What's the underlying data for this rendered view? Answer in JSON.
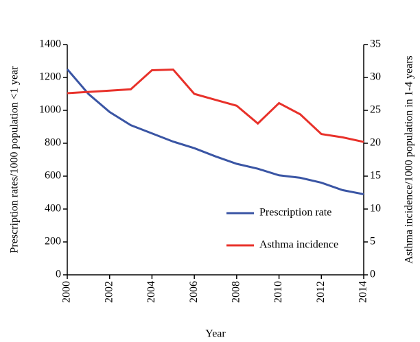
{
  "chart_data": {
    "type": "line",
    "x": [
      2000,
      2001,
      2002,
      2003,
      2004,
      2005,
      2006,
      2007,
      2008,
      2009,
      2010,
      2011,
      2012,
      2013,
      2014
    ],
    "series": [
      {
        "name": "Prescription rate",
        "color": "#3a55a4",
        "values": [
          1250,
          1100,
          990,
          910,
          860,
          810,
          770,
          720,
          675,
          645,
          605,
          590,
          560,
          515,
          490
        ]
      },
      {
        "name": "Asthma incidence",
        "color": "#e8312a",
        "axis": "y2",
        "values": [
          27.6,
          27.8,
          28.0,
          28.2,
          31.1,
          31.2,
          27.5,
          26.6,
          25.7,
          23.0,
          26.1,
          24.4,
          21.4,
          20.9,
          20.2
        ]
      }
    ],
    "xlabel": "Year",
    "ylabel": "Prescription rates/1000 population <1 year",
    "y2label": "Asthma incidence/1000 population in 1-4 years",
    "xlim": [
      2000,
      2014
    ],
    "xticks": [
      2000,
      2002,
      2004,
      2006,
      2008,
      2010,
      2012,
      2014
    ],
    "ylim": [
      0,
      1400
    ],
    "yticks": [
      0,
      200,
      400,
      600,
      800,
      1000,
      1200,
      1400
    ],
    "y2lim": [
      0,
      35
    ],
    "y2ticks": [
      0,
      5,
      10,
      15,
      20,
      25,
      30,
      35
    ],
    "legend": "lower right"
  }
}
